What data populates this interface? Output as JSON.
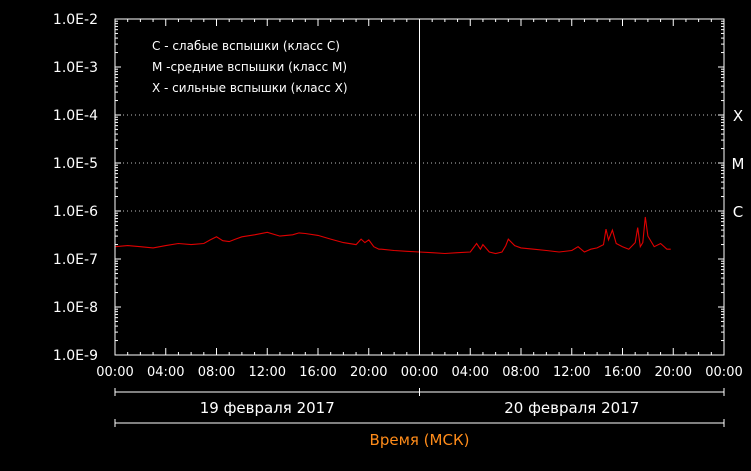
{
  "chart_data": {
    "type": "line",
    "scale": "log",
    "background": "#000000",
    "axis_color": "#ffffff",
    "line_color": "#e00000",
    "xlabel": "Время (МСК)",
    "xlabel_color": "#ff8c1a",
    "ylim": [
      1e-09,
      0.01
    ],
    "ytick_labels": [
      "1.0E-2",
      "1.0E-3",
      "1.0E-4",
      "1.0E-5",
      "1.0E-6",
      "1.0E-7",
      "1.0E-8",
      "1.0E-9"
    ],
    "ytick_values": [
      0.01,
      0.001,
      0.0001,
      1e-05,
      1e-06,
      1e-07,
      1e-08,
      1e-09
    ],
    "xlim_hours": [
      0,
      48
    ],
    "xtick_labels": [
      "00:00",
      "04:00",
      "08:00",
      "12:00",
      "16:00",
      "20:00",
      "00:00",
      "04:00",
      "08:00",
      "12:00",
      "16:00",
      "20:00",
      "00:00"
    ],
    "day_labels": [
      "19 февраля 2017",
      "20 февраля 2017"
    ],
    "class_levels": [
      {
        "label": "X",
        "value": 0.0001
      },
      {
        "label": "M",
        "value": 1e-05
      },
      {
        "label": "C",
        "value": 1e-06
      }
    ],
    "legend": [
      "C - слабые вспышки (класс C)",
      "M -средние вспышки (класс M)",
      "X - сильные вспышки (класс X)"
    ],
    "legend_position": "top-left",
    "series": [
      {
        "x_hours": [
          0,
          1,
          2,
          3,
          4,
          5,
          6,
          7,
          7.5,
          8,
          8.5,
          9,
          9.5,
          10,
          11,
          12,
          13,
          14,
          14.5,
          15,
          16,
          17,
          18,
          19,
          19.4,
          19.7,
          20,
          20.4,
          20.8,
          21,
          22,
          23,
          24,
          25,
          26,
          27,
          28,
          28.5,
          28.8,
          29,
          29.5,
          30,
          30.5,
          30.8,
          31,
          31.5,
          32,
          33,
          34,
          35,
          36,
          36.5,
          37,
          37.5,
          38,
          38.5,
          38.7,
          38.9,
          39.2,
          39.5,
          40,
          40.5,
          41,
          41.2,
          41.4,
          41.6,
          41.8,
          42,
          42.5,
          43,
          43.5,
          43.8
        ],
        "y": [
          1.8e-07,
          1.9e-07,
          1.8e-07,
          1.7e-07,
          1.9e-07,
          2.1e-07,
          2e-07,
          2.1e-07,
          2.5e-07,
          2.9e-07,
          2.4e-07,
          2.3e-07,
          2.6e-07,
          2.9e-07,
          3.2e-07,
          3.6e-07,
          3e-07,
          3.2e-07,
          3.5e-07,
          3.4e-07,
          3.1e-07,
          2.6e-07,
          2.2e-07,
          2e-07,
          2.6e-07,
          2.2e-07,
          2.5e-07,
          1.8e-07,
          1.6e-07,
          1.6e-07,
          1.5e-07,
          1.45e-07,
          1.4e-07,
          1.35e-07,
          1.3e-07,
          1.35e-07,
          1.4e-07,
          2.1e-07,
          1.6e-07,
          2e-07,
          1.4e-07,
          1.3e-07,
          1.4e-07,
          1.9e-07,
          2.6e-07,
          1.9e-07,
          1.7e-07,
          1.6e-07,
          1.5e-07,
          1.4e-07,
          1.5e-07,
          1.8e-07,
          1.4e-07,
          1.6e-07,
          1.7e-07,
          2e-07,
          4.2e-07,
          2.5e-07,
          4e-07,
          2.1e-07,
          1.8e-07,
          1.6e-07,
          2.2e-07,
          4.5e-07,
          1.8e-07,
          2.2e-07,
          7.5e-07,
          3e-07,
          1.8e-07,
          2.1e-07,
          1.6e-07,
          1.6e-07
        ]
      }
    ]
  }
}
